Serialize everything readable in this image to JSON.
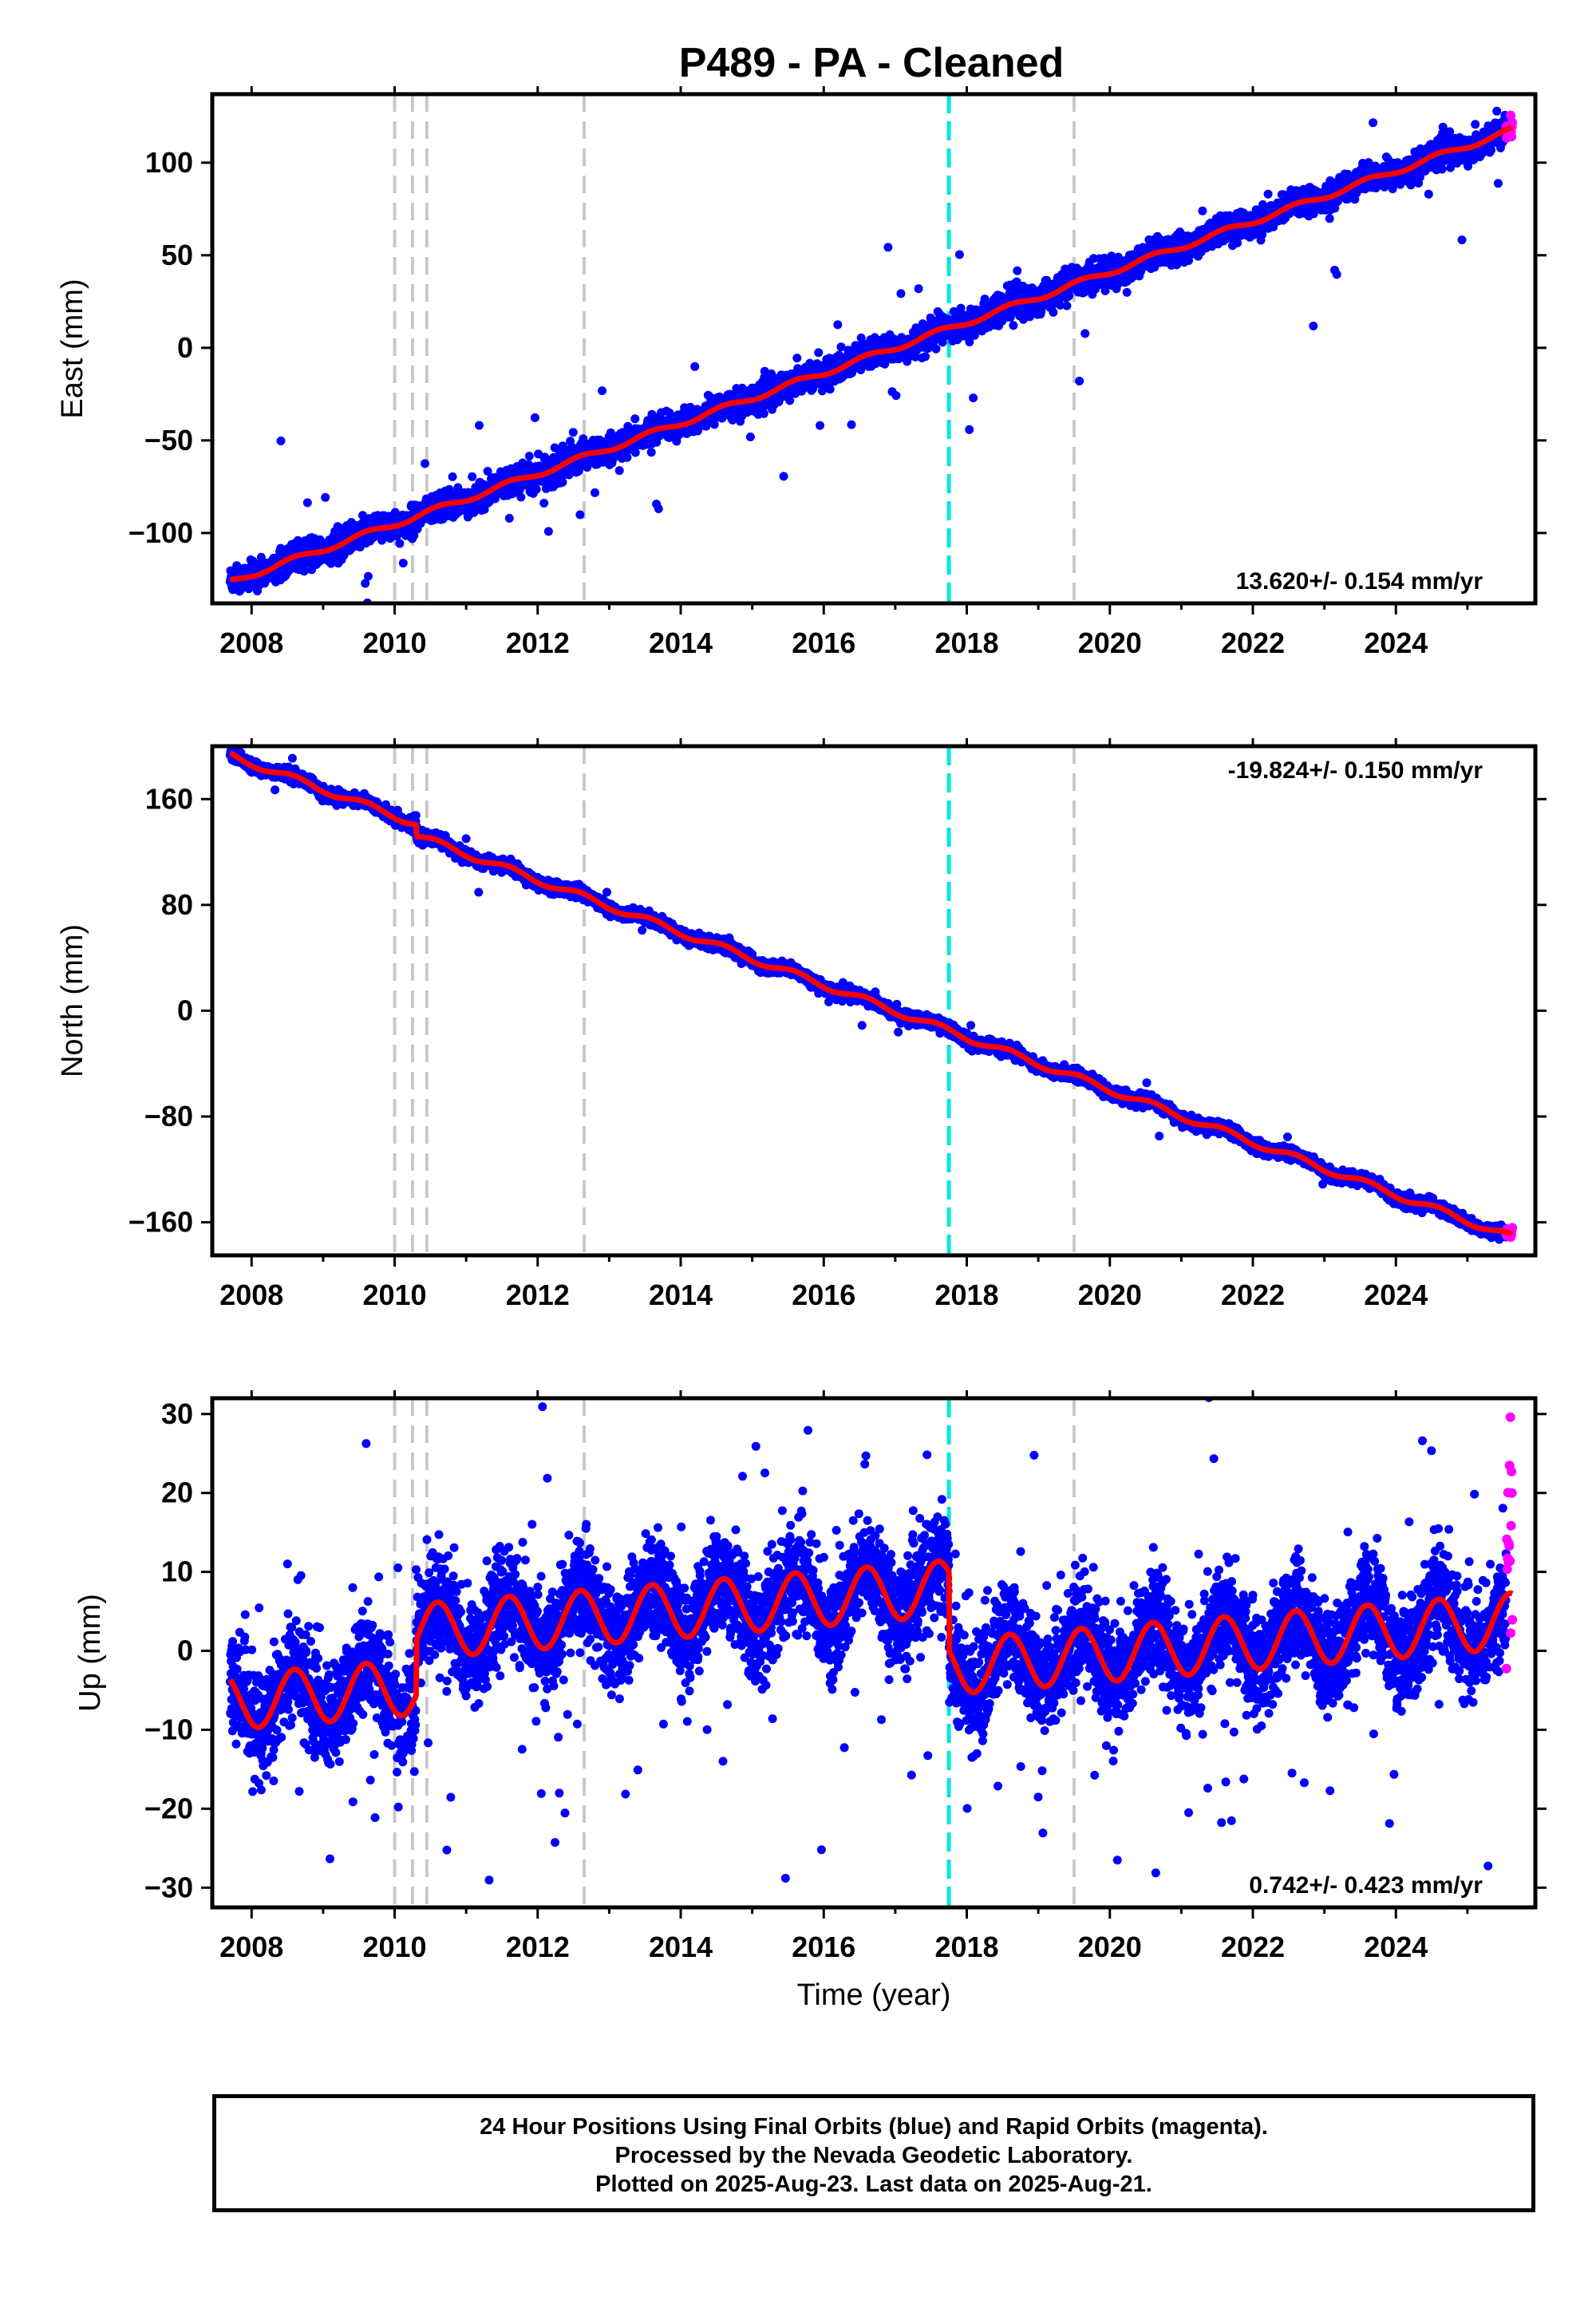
{
  "title": "P489  - PA - Cleaned",
  "xlabel": "Time (year)",
  "footer": {
    "line1": "24 Hour Positions Using Final Orbits (blue) and Rapid Orbits (magenta).",
    "line2": "Processed by the Nevada Geodetic Laboratory.",
    "line3": "Plotted on 2025-Aug-23. Last data on 2025-Aug-21."
  },
  "colors": {
    "final_orbits": "#0000ff",
    "rapid_orbits": "#ff00ff",
    "model": "#ff0000",
    "event_line": "#c8c8c8",
    "equipment_line": "#00e5e5"
  },
  "chart_data": [
    {
      "type": "scatter",
      "ylabel": "East (mm)",
      "rate_label": "13.620+/- 0.154 mm/yr",
      "rate_position": "bottom-right",
      "xlim": [
        2007.45,
        2025.95
      ],
      "ylim": [
        -138,
        137
      ],
      "xticks": [
        2008,
        2010,
        2012,
        2014,
        2016,
        2018,
        2020,
        2022,
        2024
      ],
      "yticks": [
        -100,
        -50,
        0,
        50,
        100
      ],
      "ytick_labels": [
        "−100",
        "−50",
        "0",
        "50",
        "100"
      ],
      "series": [
        {
          "model": {
            "start": 2007.7,
            "end": 2025.63,
            "intercept": -126.5,
            "rate": 13.62,
            "amplitude": 1.5,
            "offsets": []
          },
          "noise": 3.5,
          "outlier_fraction": 0.01,
          "outlier_scale": 7
        }
      ],
      "event_lines": [
        2010.0,
        2010.25,
        2010.45,
        2012.65,
        2019.5
      ],
      "equipment_lines": [
        2017.75
      ]
    },
    {
      "type": "scatter",
      "ylabel": "North (mm)",
      "rate_label": "-19.824+/- 0.150 mm/yr",
      "rate_position": "top-right",
      "xlim": [
        2007.45,
        2025.95
      ],
      "ylim": [
        -185,
        200
      ],
      "xticks": [
        2008,
        2010,
        2012,
        2014,
        2016,
        2018,
        2020,
        2022,
        2024
      ],
      "yticks": [
        -160,
        -80,
        0,
        80,
        160
      ],
      "ytick_labels": [
        "−160",
        "−80",
        "0",
        "80",
        "160"
      ],
      "series": [
        {
          "model": {
            "start": 2007.7,
            "end": 2025.63,
            "intercept": 193,
            "rate": -19.824,
            "amplitude": 2.5,
            "offsets": [
              {
                "year": 2010.3,
                "jump": -9
              }
            ]
          },
          "noise": 2.2,
          "outlier_fraction": 0.005,
          "outlier_scale": 5
        }
      ],
      "event_lines": [
        2010.0,
        2010.25,
        2010.45,
        2012.65,
        2019.5
      ],
      "equipment_lines": [
        2017.75
      ]
    },
    {
      "type": "scatter",
      "ylabel": "Up (mm)",
      "rate_label": "0.742+/- 0.423 mm/yr",
      "rate_position": "bottom-right",
      "xlim": [
        2007.45,
        2025.95
      ],
      "ylim": [
        -32.5,
        32
      ],
      "xticks": [
        2008,
        2010,
        2012,
        2014,
        2016,
        2018,
        2020,
        2022,
        2024
      ],
      "yticks": [
        -30,
        -20,
        -10,
        0,
        10,
        20,
        30
      ],
      "ytick_labels": [
        "−30",
        "−20",
        "−10",
        "0",
        "10",
        "20",
        "30"
      ],
      "series": [
        {
          "model": {
            "start": 2007.7,
            "end": 2025.63,
            "intercept": -6.5,
            "rate": 0.742,
            "amplitude": 3.5,
            "offsets": [
              {
                "year": 2010.3,
                "jump": 7
              },
              {
                "year": 2017.75,
                "jump": -10
              }
            ]
          },
          "noise": 3.2,
          "outlier_fraction": 0.03,
          "outlier_scale": 4
        }
      ],
      "event_lines": [
        2010.0,
        2010.25,
        2010.45,
        2012.65,
        2019.5
      ],
      "equipment_lines": [
        2017.75
      ]
    }
  ]
}
